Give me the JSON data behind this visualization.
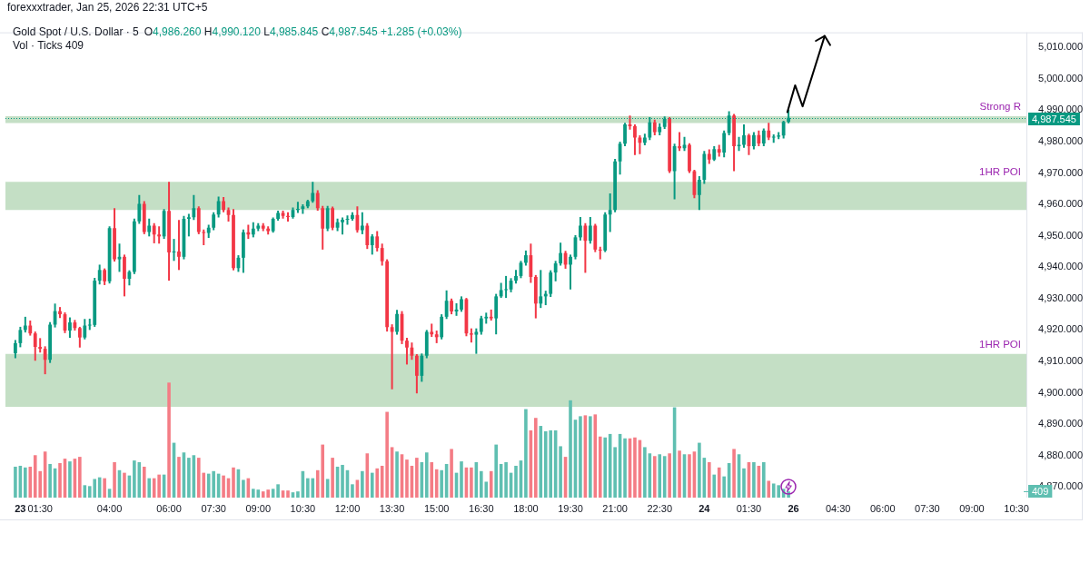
{
  "chart_data": {
    "type": "candlestick",
    "title": "Gold Spot / U.S. Dollar · 5",
    "subtitle": "O4,986.260 H4,990.120 L4,985.845 C4,987.545 +1.285 (+0.03%)",
    "annotations": [
      "forexxxtrader, Jan 25, 2026 22:31 UTC+5",
      "Vol · Ticks 409"
    ],
    "categories": [
      null,
      null,
      null,
      "23",
      null,
      null,
      null,
      "01:30",
      null,
      null,
      null,
      null,
      null,
      null,
      null,
      null,
      null,
      null,
      null,
      null,
      null,
      "04:00",
      null,
      null,
      null,
      null,
      null,
      null,
      null,
      null,
      null,
      null,
      null,
      "06:00",
      null,
      null,
      null,
      null,
      null,
      null,
      null,
      null,
      "07:30",
      null,
      null,
      null,
      null,
      null,
      null,
      null,
      null,
      "09:00",
      null,
      null,
      null,
      null,
      null,
      null,
      null,
      null,
      "10:30",
      null,
      null,
      null,
      null,
      null,
      null,
      null,
      null,
      "12:00",
      null,
      null,
      null,
      null,
      null,
      null,
      null,
      null,
      "13:30",
      null,
      null,
      null,
      null,
      null,
      null,
      null,
      null,
      "15:00",
      null,
      null,
      null,
      null,
      null,
      null,
      null,
      null,
      "16:30",
      null,
      null,
      null,
      null,
      null,
      null,
      null,
      null,
      "18:00",
      null,
      null,
      null,
      null,
      null,
      null,
      null,
      null,
      "19:30",
      null,
      null,
      null,
      null,
      null,
      null,
      null,
      null,
      "21:00",
      null,
      null,
      null,
      null,
      null,
      null,
      null,
      null,
      "22:30",
      null,
      null,
      null,
      null,
      null,
      null,
      null,
      null,
      "24",
      null,
      null,
      null,
      null,
      null,
      null,
      null,
      null,
      "01:30",
      null,
      null,
      null,
      null,
      null,
      null,
      null,
      null,
      "26",
      null,
      null,
      null,
      null,
      null,
      null,
      null,
      null,
      "04:30",
      null,
      null,
      null,
      null,
      null,
      null,
      null,
      null,
      "06:00",
      null,
      null,
      null,
      null,
      null,
      null,
      null,
      null,
      "07:30",
      null,
      null,
      null,
      null,
      null,
      null,
      null,
      null,
      "09:00",
      null,
      null,
      null,
      null,
      null,
      null,
      null,
      null,
      "10:30",
      null,
      null
    ],
    "ohlc": [
      null,
      null,
      [
        4912.6,
        4916.8,
        4911.0,
        4915.8
      ],
      [
        4915.8,
        4921.0,
        4914.5,
        4920.0
      ],
      [
        4920.0,
        4924.2,
        4919.2,
        4921.4
      ],
      [
        4921.4,
        4923.0,
        4918.2,
        4918.9
      ],
      [
        4918.9,
        4919.5,
        4910.2,
        4914.6
      ],
      [
        4914.6,
        4917.4,
        4912.8,
        4914.0
      ],
      [
        4914.0,
        4914.8,
        4905.9,
        4910.5
      ],
      [
        4910.5,
        4922.5,
        4909.5,
        4921.7
      ],
      [
        4921.7,
        4928.4,
        4920.8,
        4926.0
      ],
      [
        4926.0,
        4927.3,
        4923.8,
        4925.0
      ],
      [
        4925.0,
        4925.6,
        4919.0,
        4919.8
      ],
      [
        4919.8,
        4924.0,
        4917.5,
        4922.4
      ],
      [
        4922.4,
        4923.2,
        4919.8,
        4920.6
      ],
      [
        4920.6,
        4921.0,
        4914.4,
        4917.6
      ],
      [
        4917.6,
        4923.5,
        4917.0,
        4921.4
      ],
      [
        4921.4,
        4923.6,
        4920.0,
        4921.6
      ],
      [
        4921.6,
        4936.6,
        4921.0,
        4935.7
      ],
      [
        4935.7,
        4940.8,
        4934.5,
        4939.1
      ],
      [
        4939.1,
        4939.6,
        4934.3,
        4935.5
      ],
      [
        4935.5,
        4953.0,
        4934.8,
        4952.4
      ],
      [
        4952.4,
        4958.8,
        4941.8,
        4942.5
      ],
      [
        4942.5,
        4947.5,
        4938.5,
        4943.3
      ],
      [
        4943.3,
        4944.0,
        4930.7,
        4936.3
      ],
      [
        4936.3,
        4939.0,
        4934.2,
        4938.5
      ],
      [
        4938.5,
        4955.5,
        4937.8,
        4954.6
      ],
      [
        4954.6,
        4963.0,
        4953.8,
        4960.2
      ],
      [
        4960.2,
        4961.0,
        4950.5,
        4951.2
      ],
      [
        4951.2,
        4955.5,
        4949.8,
        4953.2
      ],
      [
        4953.2,
        4954.0,
        4947.6,
        4950.4
      ],
      [
        4950.4,
        4953.0,
        4947.5,
        4949.8
      ],
      [
        4949.8,
        4958.5,
        4949.0,
        4957.9
      ],
      [
        4957.9,
        4967.2,
        4935.7,
        4944.7
      ],
      [
        4944.7,
        4949.0,
        4942.0,
        4945.0
      ],
      [
        4945.0,
        4955.0,
        4939.1,
        4943.3
      ],
      [
        4943.3,
        4956.3,
        4942.5,
        4955.4
      ],
      [
        4955.4,
        4957.0,
        4949.8,
        4955.9
      ],
      [
        4955.9,
        4963.0,
        4955.0,
        4958.8
      ],
      [
        4958.8,
        4959.4,
        4950.5,
        4951.2
      ],
      [
        4951.2,
        4952.0,
        4947.0,
        4950.9
      ],
      [
        4950.9,
        4953.5,
        4949.3,
        4952.6
      ],
      [
        4952.6,
        4957.5,
        4951.8,
        4956.8
      ],
      [
        4956.8,
        4962.5,
        4955.8,
        4961.0
      ],
      [
        4961.0,
        4962.3,
        4957.5,
        4958.2
      ],
      [
        4958.2,
        4959.0,
        4954.5,
        4956.6
      ],
      [
        4956.6,
        4958.5,
        4939.0,
        4939.7
      ],
      [
        4939.7,
        4943.8,
        4938.5,
        4943.0
      ],
      [
        4943.0,
        4952.0,
        4938.2,
        4951.1
      ],
      [
        4951.1,
        4953.5,
        4949.0,
        4950.4
      ],
      [
        4950.4,
        4954.3,
        4949.5,
        4952.3
      ],
      [
        4952.3,
        4954.0,
        4951.5,
        4953.2
      ],
      [
        4953.2,
        4954.0,
        4951.5,
        4952.3
      ],
      [
        4952.3,
        4953.0,
        4950.4,
        4951.5
      ],
      [
        4951.5,
        4955.8,
        4951.0,
        4955.4
      ],
      [
        4955.4,
        4958.0,
        4954.8,
        4957.3
      ],
      [
        4957.3,
        4958.0,
        4955.5,
        4956.3
      ],
      [
        4956.3,
        4957.5,
        4954.5,
        4956.0
      ],
      [
        4956.0,
        4959.0,
        4955.5,
        4958.2
      ],
      [
        4958.2,
        4960.8,
        4957.3,
        4958.6
      ],
      [
        4958.6,
        4960.0,
        4957.0,
        4959.4
      ],
      [
        4959.4,
        4961.5,
        4958.8,
        4961.0
      ],
      [
        4961.0,
        4967.2,
        4960.5,
        4963.6
      ],
      [
        4963.6,
        4964.5,
        4958.0,
        4958.8
      ],
      [
        4958.8,
        4959.5,
        4945.6,
        4952.3
      ],
      [
        4952.3,
        4959.5,
        4951.5,
        4958.8
      ],
      [
        4958.8,
        4959.3,
        4951.8,
        4952.6
      ],
      [
        4952.6,
        4955.5,
        4951.5,
        4954.3
      ],
      [
        4954.3,
        4955.8,
        4950.4,
        4955.1
      ],
      [
        4955.1,
        4956.5,
        4953.5,
        4955.4
      ],
      [
        4955.4,
        4957.5,
        4954.8,
        4956.6
      ],
      [
        4956.6,
        4959.4,
        4951.0,
        4951.8
      ],
      [
        4951.8,
        4957.5,
        4950.5,
        4953.2
      ],
      [
        4953.2,
        4954.0,
        4945.8,
        4947.0
      ],
      [
        4947.0,
        4950.5,
        4944.0,
        4949.8
      ],
      [
        4949.8,
        4951.5,
        4945.0,
        4946.1
      ],
      [
        4946.1,
        4947.5,
        4940.5,
        4941.9
      ],
      [
        4941.9,
        4942.5,
        4919.5,
        4920.9
      ],
      [
        4920.9,
        4921.8,
        4901.1,
        4919.4
      ],
      [
        4919.4,
        4926.4,
        4918.5,
        4925.1
      ],
      [
        4925.1,
        4926.0,
        4915.5,
        4916.6
      ],
      [
        4916.6,
        4917.5,
        4909.0,
        4914.4
      ],
      [
        4914.4,
        4916.0,
        4910.5,
        4911.8
      ],
      [
        4911.8,
        4912.3,
        4899.8,
        4905.4
      ],
      [
        4905.4,
        4912.5,
        4903.5,
        4911.8
      ],
      [
        4911.8,
        4920.0,
        4911.0,
        4919.4
      ],
      [
        4919.4,
        4922.0,
        4917.8,
        4918.6
      ],
      [
        4918.6,
        4919.8,
        4915.8,
        4917.7
      ],
      [
        4917.7,
        4925.0,
        4917.0,
        4924.2
      ],
      [
        4924.2,
        4932.6,
        4923.5,
        4929.3
      ],
      [
        4929.3,
        4930.0,
        4925.0,
        4925.9
      ],
      [
        4925.9,
        4928.5,
        4924.5,
        4926.5
      ],
      [
        4926.5,
        4930.7,
        4925.8,
        4929.8
      ],
      [
        4929.8,
        4930.2,
        4918.0,
        4918.9
      ],
      [
        4918.9,
        4920.5,
        4916.0,
        4918.5
      ],
      [
        4918.5,
        4920.5,
        4912.4,
        4919.4
      ],
      [
        4919.4,
        4924.5,
        4918.5,
        4923.7
      ],
      [
        4923.7,
        4925.5,
        4922.0,
        4924.2
      ],
      [
        4924.2,
        4926.5,
        4923.0,
        4923.7
      ],
      [
        4923.7,
        4931.5,
        4918.6,
        4930.7
      ],
      [
        4930.7,
        4935.0,
        4930.2,
        4932.7
      ],
      [
        4932.7,
        4937.2,
        4930.2,
        4932.9
      ],
      [
        4932.9,
        4936.5,
        4932.0,
        4935.7
      ],
      [
        4935.7,
        4939.1,
        4934.8,
        4937.2
      ],
      [
        4937.2,
        4942.0,
        4936.5,
        4941.4
      ],
      [
        4941.4,
        4945.3,
        4940.5,
        4943.8
      ],
      [
        4943.8,
        4947.5,
        4935.0,
        4936.9
      ],
      [
        4936.9,
        4937.5,
        4923.7,
        4928.4
      ],
      [
        4928.4,
        4939.1,
        4927.0,
        4930.7
      ],
      [
        4930.7,
        4932.5,
        4927.9,
        4931.5
      ],
      [
        4931.5,
        4939.0,
        4930.5,
        4938.3
      ],
      [
        4938.3,
        4942.0,
        4935.5,
        4941.2
      ],
      [
        4941.2,
        4947.8,
        4940.5,
        4944.5
      ],
      [
        4944.5,
        4945.2,
        4939.5,
        4940.8
      ],
      [
        4940.8,
        4944.0,
        4932.9,
        4943.3
      ],
      [
        4943.3,
        4950.2,
        4942.5,
        4949.5
      ],
      [
        4949.5,
        4956.0,
        4948.5,
        4953.2
      ],
      [
        4953.2,
        4954.0,
        4938.2,
        4948.4
      ],
      [
        4948.4,
        4956.0,
        4947.5,
        4953.2
      ],
      [
        4953.2,
        4953.8,
        4944.8,
        4945.6
      ],
      [
        4945.6,
        4946.5,
        4942.5,
        4945.3
      ],
      [
        4945.3,
        4957.5,
        4944.8,
        4956.8
      ],
      [
        4956.8,
        4963.5,
        4951.2,
        4958.2
      ],
      [
        4958.2,
        4974.5,
        4957.5,
        4973.7
      ],
      [
        4973.7,
        4980.0,
        4969.5,
        4979.3
      ],
      [
        4979.3,
        4986.0,
        4978.5,
        4985.5
      ],
      [
        4985.5,
        4988.3,
        4983.8,
        4984.9
      ],
      [
        4984.9,
        4985.5,
        4975.7,
        4981.3
      ],
      [
        4981.3,
        4982.0,
        4976.0,
        4979.6
      ],
      [
        4979.6,
        4982.5,
        4978.8,
        4981.3
      ],
      [
        4981.3,
        4987.8,
        4980.5,
        4986.1
      ],
      [
        4986.1,
        4987.0,
        4982.0,
        4983.0
      ],
      [
        4983.0,
        4985.8,
        4982.0,
        4984.7
      ],
      [
        4984.7,
        4988.0,
        4984.0,
        4987.2
      ],
      [
        4987.2,
        4987.8,
        4970.0,
        4970.6
      ],
      [
        4970.6,
        4979.3,
        4961.6,
        4978.5
      ],
      [
        4978.5,
        4983.0,
        4977.0,
        4977.9
      ],
      [
        4977.9,
        4981.5,
        4977.0,
        4979.0
      ],
      [
        4979.0,
        4979.5,
        4970.0,
        4970.6
      ],
      [
        4970.6,
        4971.0,
        4962.0,
        4963.0
      ],
      [
        4963.0,
        4969.0,
        4958.2,
        4967.8
      ],
      [
        4967.8,
        4977.0,
        4966.5,
        4976.1
      ],
      [
        4976.1,
        4977.5,
        4972.9,
        4974.3
      ],
      [
        4974.3,
        4978.5,
        4973.8,
        4977.6
      ],
      [
        4977.6,
        4979.0,
        4975.2,
        4976.5
      ],
      [
        4976.5,
        4983.5,
        4975.0,
        4982.7
      ],
      [
        4982.7,
        4989.7,
        4982.0,
        4988.3
      ],
      [
        4988.3,
        4988.8,
        4970.6,
        4978.5
      ],
      [
        4978.5,
        4981.5,
        4977.0,
        4979.0
      ],
      [
        4979.0,
        4985.5,
        4978.0,
        4982.0
      ],
      [
        4982.0,
        4982.5,
        4975.7,
        4978.5
      ],
      [
        4978.5,
        4983.0,
        4977.5,
        4982.1
      ],
      [
        4982.1,
        4983.5,
        4978.5,
        4979.4
      ],
      [
        4979.4,
        4984.2,
        4978.5,
        4983.5
      ],
      [
        4983.5,
        4986.0,
        4980.5,
        4981.3
      ],
      [
        4981.3,
        4982.3,
        4979.6,
        4981.6
      ],
      [
        4981.6,
        4983.0,
        4980.8,
        4981.9
      ],
      [
        4981.9,
        4986.6,
        4981.0,
        4986.26
      ],
      [
        4986.26,
        4990.12,
        4985.845,
        4987.545
      ],
      null,
      null,
      null,
      null,
      null,
      null,
      null,
      null,
      null,
      null,
      null,
      null,
      null,
      null,
      null,
      null,
      null,
      null,
      null,
      null,
      null,
      null,
      null,
      null,
      null,
      null,
      null,
      null,
      null,
      null,
      null,
      null,
      null,
      null,
      null,
      null,
      null,
      null,
      null,
      null,
      null,
      null,
      null,
      null,
      null,
      null,
      null,
      null
    ],
    "colors": [
      null,
      null,
      "#089981",
      "#089981",
      "#089981",
      "#f23645",
      "#f23645",
      "#f23645",
      "#f23645",
      "#089981",
      "#089981",
      "#f23645",
      "#f23645",
      "#089981",
      "#f23645",
      "#f23645",
      "#089981",
      "#089981",
      "#089981",
      "#089981",
      "#f23645",
      "#089981",
      "#f23645",
      "#089981",
      "#f23645",
      "#089981",
      "#089981",
      "#089981",
      "#f23645",
      "#089981",
      "#f23645",
      "#f23645",
      "#089981",
      "#f23645",
      "#089981",
      "#f23645",
      "#089981",
      "#089981",
      "#089981",
      "#f23645",
      "#f23645",
      "#089981",
      "#089981",
      "#089981",
      "#f23645",
      "#f23645",
      "#f23645",
      "#089981",
      "#089981",
      "#f23645",
      "#089981",
      "#089981",
      "#f23645",
      "#f23645",
      "#089981",
      "#089981",
      "#f23645",
      "#f23645",
      "#089981",
      "#089981",
      "#089981",
      "#089981",
      "#089981",
      "#f23645",
      "#f23645",
      "#089981",
      "#f23645",
      "#089981",
      "#089981",
      "#089981",
      "#089981",
      "#f23645",
      "#089981",
      "#f23645",
      "#089981",
      "#f23645",
      "#f23645",
      "#f23645",
      "#f23645",
      "#089981",
      "#f23645",
      "#f23645",
      "#f23645",
      "#f23645",
      "#089981",
      "#089981",
      "#f23645",
      "#f23645",
      "#089981",
      "#089981",
      "#f23645",
      "#089981",
      "#089981",
      "#f23645",
      "#f23645",
      "#089981",
      "#089981",
      "#089981",
      "#f23645",
      "#089981",
      "#089981",
      "#089981",
      "#089981",
      "#089981",
      "#089981",
      "#089981",
      "#f23645",
      "#f23645",
      "#089981",
      "#089981",
      "#089981",
      "#089981",
      "#089981",
      "#f23645",
      "#089981",
      "#089981",
      "#089981",
      "#f23645",
      "#089981",
      "#f23645",
      "#f23645",
      "#089981",
      "#089981",
      "#089981",
      "#089981",
      "#089981",
      "#f23645",
      "#f23645",
      "#f23645",
      "#089981",
      "#089981",
      "#f23645",
      "#089981",
      "#089981",
      "#f23645",
      "#089981",
      "#f23645",
      "#089981",
      "#f23645",
      "#f23645",
      "#089981",
      "#089981",
      "#f23645",
      "#089981",
      "#f23645",
      "#089981",
      "#089981",
      "#f23645",
      "#089981",
      "#089981",
      "#f23645",
      "#089981",
      "#f23645",
      "#089981",
      "#f23645",
      "#089981",
      "#089981",
      "#089981",
      "#089981",
      null,
      null,
      null,
      null,
      null,
      null,
      null,
      null,
      null,
      null,
      null,
      null,
      null,
      null,
      null,
      null,
      null,
      null,
      null,
      null,
      null,
      null,
      null,
      null,
      null,
      null,
      null,
      null,
      null,
      null,
      null,
      null,
      null,
      null,
      null,
      null,
      null,
      null,
      null,
      null,
      null,
      null,
      null,
      null,
      null,
      null,
      null,
      null
    ],
    "series": [
      {
        "type": "bar",
        "axis": "y2",
        "values": [
          null,
          null,
          2040,
          2100,
          1990,
          2040,
          2800,
          1750,
          3040,
          2220,
          1930,
          2280,
          2570,
          2390,
          2570,
          2690,
          820,
          760,
          1230,
          1340,
          1280,
          580,
          2340,
          1810,
          1640,
          1460,
          2450,
          2340,
          2040,
          1280,
          1280,
          1520,
          1520,
          7590,
          3620,
          2690,
          2980,
          2630,
          2800,
          2630,
          1640,
          1580,
          1750,
          1580,
          1460,
          1280,
          1990,
          1870,
          1170,
          1280,
          580,
          530,
          410,
          530,
          580,
          880,
          470,
          470,
          350,
          410,
          1750,
          1280,
          1280,
          1810,
          3500,
          1230,
          2630,
          2040,
          2160,
          1810,
          880,
          1170,
          1750,
          2920,
          1640,
          1930,
          2100,
          5660,
          3330,
          3040,
          2860,
          2510,
          2100,
          2630,
          2340,
          2980,
          2340,
          1870,
          1810,
          2220,
          3210,
          1640,
          2390,
          1990,
          1990,
          2340,
          1750,
          1050,
          1750,
          3500,
          2220,
          2340,
          1640,
          2100,
          2450,
          5840,
          4440,
          5260,
          4730,
          4380,
          4440,
          4440,
          3390,
          2690,
          6420,
          5140,
          5370,
          5430,
          5370,
          5490,
          4030,
          3970,
          4200,
          3330,
          4200,
          3910,
          3910,
          3970,
          3800,
          3330,
          2920,
          2740,
          2860,
          2740,
          2920,
          5960,
          3100,
          2860,
          2860,
          3040,
          3620,
          2630,
          2340,
          1520,
          1990,
          1400,
          2280,
          3210,
          2860,
          1930,
          2340,
          2340,
          2100,
          2340,
          1110,
          930,
          820,
          580,
          409,
          null,
          null,
          null,
          null,
          null,
          null,
          null,
          null,
          null,
          null,
          null,
          null,
          null,
          null,
          null,
          null,
          null,
          null,
          null,
          null,
          null,
          null,
          null,
          null,
          null,
          null,
          null,
          null,
          null,
          null,
          null,
          null,
          null,
          null,
          null,
          null,
          null,
          null,
          null,
          null,
          null,
          null,
          null,
          null,
          null,
          null,
          null,
          null
        ],
        "colors": [
          null,
          null,
          "#5fbfb1",
          "#5fbfb1",
          "#5fbfb1",
          "#f47c85",
          "#f47c85",
          "#f47c85",
          "#f47c85",
          "#5fbfb1",
          "#5fbfb1",
          "#f47c85",
          "#f47c85",
          "#5fbfb1",
          "#f47c85",
          "#f47c85",
          "#5fbfb1",
          "#5fbfb1",
          "#5fbfb1",
          "#5fbfb1",
          "#f47c85",
          "#5fbfb1",
          "#f47c85",
          "#5fbfb1",
          "#f47c85",
          "#5fbfb1",
          "#5fbfb1",
          "#5fbfb1",
          "#f47c85",
          "#5fbfb1",
          "#f47c85",
          "#f47c85",
          "#5fbfb1",
          "#f47c85",
          "#5fbfb1",
          "#f47c85",
          "#5fbfb1",
          "#5fbfb1",
          "#5fbfb1",
          "#f47c85",
          "#f47c85",
          "#5fbfb1",
          "#5fbfb1",
          "#5fbfb1",
          "#f47c85",
          "#f47c85",
          "#f47c85",
          "#5fbfb1",
          "#5fbfb1",
          "#f47c85",
          "#5fbfb1",
          "#5fbfb1",
          "#f47c85",
          "#f47c85",
          "#5fbfb1",
          "#5fbfb1",
          "#f47c85",
          "#f47c85",
          "#5fbfb1",
          "#5fbfb1",
          "#5fbfb1",
          "#5fbfb1",
          "#5fbfb1",
          "#f47c85",
          "#f47c85",
          "#5fbfb1",
          "#f47c85",
          "#5fbfb1",
          "#5fbfb1",
          "#5fbfb1",
          "#5fbfb1",
          "#f47c85",
          "#5fbfb1",
          "#f47c85",
          "#5fbfb1",
          "#f47c85",
          "#f47c85",
          "#f47c85",
          "#f47c85",
          "#5fbfb1",
          "#f47c85",
          "#f47c85",
          "#f47c85",
          "#f47c85",
          "#5fbfb1",
          "#5fbfb1",
          "#f47c85",
          "#f47c85",
          "#5fbfb1",
          "#5fbfb1",
          "#f47c85",
          "#5fbfb1",
          "#5fbfb1",
          "#f47c85",
          "#f47c85",
          "#5fbfb1",
          "#5fbfb1",
          "#5fbfb1",
          "#f47c85",
          "#5fbfb1",
          "#5fbfb1",
          "#5fbfb1",
          "#5fbfb1",
          "#5fbfb1",
          "#5fbfb1",
          "#5fbfb1",
          "#f47c85",
          "#f47c85",
          "#5fbfb1",
          "#5fbfb1",
          "#5fbfb1",
          "#5fbfb1",
          "#5fbfb1",
          "#f47c85",
          "#5fbfb1",
          "#5fbfb1",
          "#5fbfb1",
          "#f47c85",
          "#5fbfb1",
          "#f47c85",
          "#f47c85",
          "#5fbfb1",
          "#5fbfb1",
          "#5fbfb1",
          "#5fbfb1",
          "#5fbfb1",
          "#f47c85",
          "#f47c85",
          "#f47c85",
          "#5fbfb1",
          "#5fbfb1",
          "#f47c85",
          "#5fbfb1",
          "#5fbfb1",
          "#f47c85",
          "#5fbfb1",
          "#f47c85",
          "#5fbfb1",
          "#f47c85",
          "#f47c85",
          "#5fbfb1",
          "#5fbfb1",
          "#f47c85",
          "#5fbfb1",
          "#f47c85",
          "#5fbfb1",
          "#5fbfb1",
          "#f47c85",
          "#5fbfb1",
          "#5fbfb1",
          "#f47c85",
          "#5fbfb1",
          "#f47c85",
          "#5fbfb1",
          "#f47c85",
          "#5fbfb1",
          "#5fbfb1",
          "#5fbfb1",
          "#5fbfb1",
          null,
          null,
          null,
          null,
          null,
          null,
          null,
          null,
          null,
          null,
          null,
          null,
          null,
          null,
          null,
          null,
          null,
          null,
          null,
          null,
          null,
          null,
          null,
          null,
          null,
          null,
          null,
          null,
          null,
          null,
          null,
          null,
          null,
          null,
          null,
          null,
          null,
          null,
          null,
          null,
          null,
          null,
          null,
          null,
          null,
          null,
          null,
          null
        ]
      }
    ],
    "ylim": [
      4866.6,
      5014.8
    ],
    "yticks": [
      {
        "value": 4870,
        "label": "4,870.000"
      },
      {
        "value": 4880,
        "label": "4,880.000"
      },
      {
        "value": 4890,
        "label": "4,890.000"
      },
      {
        "value": 4900,
        "label": "4,900.000"
      },
      {
        "value": 4910,
        "label": "4,910.000"
      },
      {
        "value": 4920,
        "label": "4,920.000"
      },
      {
        "value": 4930,
        "label": "4,930.000"
      },
      {
        "value": 4940,
        "label": "4,940.000"
      },
      {
        "value": 4950,
        "label": "4,950.000"
      },
      {
        "value": 4960,
        "label": "4,960.000"
      },
      {
        "value": 4970,
        "label": "4,970.000"
      },
      {
        "value": 4980,
        "label": "4,980.000"
      },
      {
        "value": 4990,
        "label": "4,990.000"
      },
      {
        "value": 5000,
        "label": "5,000.000"
      },
      {
        "value": 5010,
        "label": "5,010.000"
      }
    ],
    "y2lim": [
      0,
      30700
    ],
    "y2ticks": [
      {
        "value": 409,
        "label": "409"
      }
    ],
    "bands": [
      {
        "axis": "y",
        "from": 4958.2,
        "to": 4967.2,
        "label": "1HR POI",
        "color": "#c4dfc5"
      },
      {
        "axis": "y",
        "from": 4895.5,
        "to": 4912.4,
        "label": "1HR POI",
        "color": "#c4dfc5"
      },
      {
        "axis": "y",
        "from": 4985.9,
        "to": 4988.1,
        "label": "Strong R",
        "color": "#c4dfc5"
      }
    ],
    "ref_lines": [
      {
        "axis": "y",
        "value": 4987.545,
        "label": "4,987.545",
        "color": "#089981",
        "line_style": "dotted"
      }
    ]
  }
}
